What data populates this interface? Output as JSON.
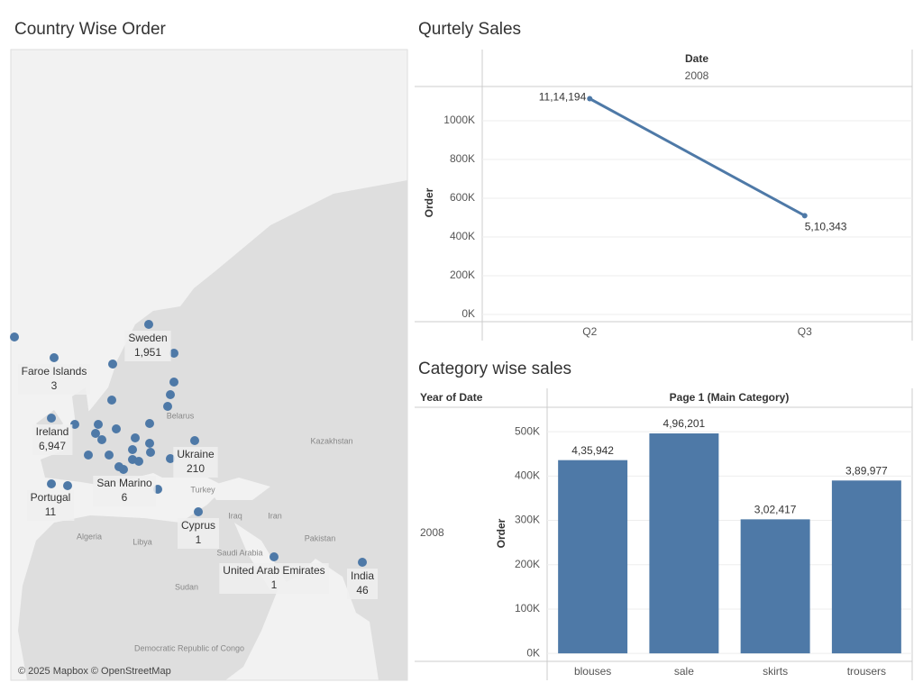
{
  "chart_data": [
    {
      "type": "map",
      "title": "Country Wise Order",
      "points": [
        {
          "name": "Sweden",
          "value": 1951,
          "value_label": "1,951"
        },
        {
          "name": "Faroe Islands",
          "value": 3,
          "value_label": "3"
        },
        {
          "name": "Ireland",
          "value": 6947,
          "value_label": "6,947"
        },
        {
          "name": "Ukraine",
          "value": 210,
          "value_label": "210"
        },
        {
          "name": "Portugal",
          "value": 11,
          "value_label": "11"
        },
        {
          "name": "San Marino",
          "value": 6,
          "value_label": "6"
        },
        {
          "name": "Cyprus",
          "value": 1,
          "value_label": "1"
        },
        {
          "name": "United Arab Emirates",
          "value": 1,
          "value_label": "1"
        },
        {
          "name": "India",
          "value": 46,
          "value_label": "46"
        }
      ],
      "basemap_labels": [
        "Kazakhstan",
        "Turkey",
        "Iran",
        "Iraq",
        "Algeria",
        "Libya",
        "Saudi Arabia",
        "Sudan",
        "Pakistan",
        "Belarus",
        "Democratic Republic of Congo"
      ],
      "color": "#4e79a7",
      "attribution": "© 2025 Mapbox © OpenStreetMap"
    },
    {
      "type": "line",
      "title": "Qurtely Sales",
      "header": "Date",
      "column": "2008",
      "y_label": "Order",
      "categories": [
        "Q2",
        "Q3"
      ],
      "values": [
        1114194,
        510343
      ],
      "value_labels": [
        "11,14,194",
        "5,10,343"
      ],
      "color": "#4e79a7",
      "ylim": [
        -37000,
        1177000
      ],
      "yticks": [
        {
          "value": 0,
          "label": "0K"
        },
        {
          "value": 200000,
          "label": "200K"
        },
        {
          "value": 400000,
          "label": "400K"
        },
        {
          "value": 600000,
          "label": "600K"
        },
        {
          "value": 800000,
          "label": "800K"
        },
        {
          "value": 1000000,
          "label": "1000K"
        }
      ],
      "grid": true
    },
    {
      "type": "bar",
      "title": "Category wise sales",
      "row_header": "Year of Date",
      "header": "Page 1 (Main Category)",
      "row": "2008",
      "y_label": "Order",
      "categories": [
        "blouses",
        "sale",
        "skirts",
        "trousers"
      ],
      "values": [
        435942,
        496201,
        302417,
        389977
      ],
      "value_labels": [
        "4,35,942",
        "4,96,201",
        "3,02,417",
        "3,89,977"
      ],
      "color": "#4e79a7",
      "ylim": [
        -18000,
        543000
      ],
      "yticks": [
        {
          "value": 0,
          "label": "0K"
        },
        {
          "value": 100000,
          "label": "100K"
        },
        {
          "value": 200000,
          "label": "200K"
        },
        {
          "value": 300000,
          "label": "300K"
        },
        {
          "value": 400000,
          "label": "400K"
        },
        {
          "value": 500000,
          "label": "500K"
        }
      ],
      "grid": true
    }
  ]
}
